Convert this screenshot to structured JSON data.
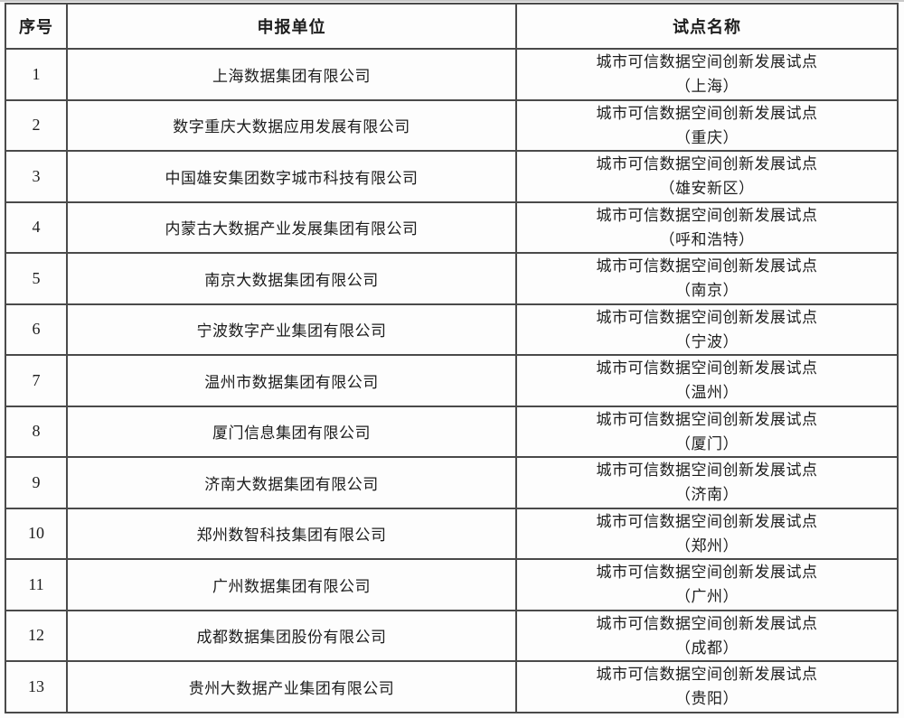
{
  "colors": {
    "background": "#fdfdfd",
    "border": "#4a4a4a",
    "text": "#1d1d1d",
    "scan_edge": "#c9c9c9"
  },
  "table": {
    "headers": [
      "序号",
      "申报单位",
      "试点名称"
    ],
    "rows": [
      {
        "no": "1",
        "org": "上海数据集团有限公司",
        "pilot_line1": "城市可信数据空间创新发展试点",
        "pilot_line2": "（上海）"
      },
      {
        "no": "2",
        "org": "数字重庆大数据应用发展有限公司",
        "pilot_line1": "城市可信数据空间创新发展试点",
        "pilot_line2": "（重庆）"
      },
      {
        "no": "3",
        "org": "中国雄安集团数字城市科技有限公司",
        "pilot_line1": "城市可信数据空间创新发展试点",
        "pilot_line2": "（雄安新区）"
      },
      {
        "no": "4",
        "org": "内蒙古大数据产业发展集团有限公司",
        "pilot_line1": "城市可信数据空间创新发展试点",
        "pilot_line2": "（呼和浩特）"
      },
      {
        "no": "5",
        "org": "南京大数据集团有限公司",
        "pilot_line1": "城市可信数据空间创新发展试点",
        "pilot_line2": "（南京）"
      },
      {
        "no": "6",
        "org": "宁波数字产业集团有限公司",
        "pilot_line1": "城市可信数据空间创新发展试点",
        "pilot_line2": "（宁波）"
      },
      {
        "no": "7",
        "org": "温州市数据集团有限公司",
        "pilot_line1": "城市可信数据空间创新发展试点",
        "pilot_line2": "（温州）"
      },
      {
        "no": "8",
        "org": "厦门信息集团有限公司",
        "pilot_line1": "城市可信数据空间创新发展试点",
        "pilot_line2": "（厦门）"
      },
      {
        "no": "9",
        "org": "济南大数据集团有限公司",
        "pilot_line1": "城市可信数据空间创新发展试点",
        "pilot_line2": "（济南）"
      },
      {
        "no": "10",
        "org": "郑州数智科技集团有限公司",
        "pilot_line1": "城市可信数据空间创新发展试点",
        "pilot_line2": "（郑州）"
      },
      {
        "no": "11",
        "org": "广州数据集团有限公司",
        "pilot_line1": "城市可信数据空间创新发展试点",
        "pilot_line2": "（广州）"
      },
      {
        "no": "12",
        "org": "成都数据集团股份有限公司",
        "pilot_line1": "城市可信数据空间创新发展试点",
        "pilot_line2": "（成都）"
      },
      {
        "no": "13",
        "org": "贵州大数据产业集团有限公司",
        "pilot_line1": "城市可信数据空间创新发展试点",
        "pilot_line2": "（贵阳）"
      }
    ]
  }
}
